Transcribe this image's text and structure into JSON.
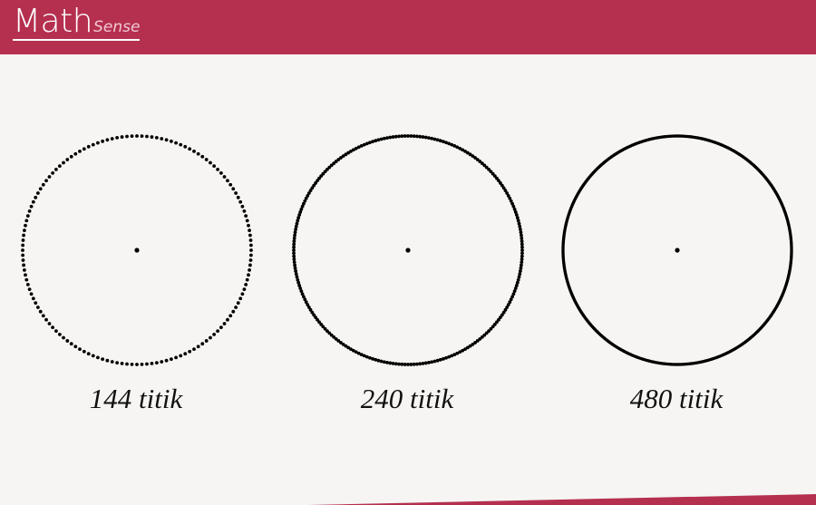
{
  "header": {
    "logo_main": "Math",
    "logo_sub": "Sense",
    "color": "#b52f4f"
  },
  "circles": [
    {
      "points": 144,
      "caption": "144 titik"
    },
    {
      "points": 240,
      "caption": "240 titik"
    },
    {
      "points": 480,
      "caption": "480 titik"
    }
  ],
  "colors": {
    "background": "#f6f5f3",
    "dot": "#000000",
    "accent": "#b52f4f"
  }
}
